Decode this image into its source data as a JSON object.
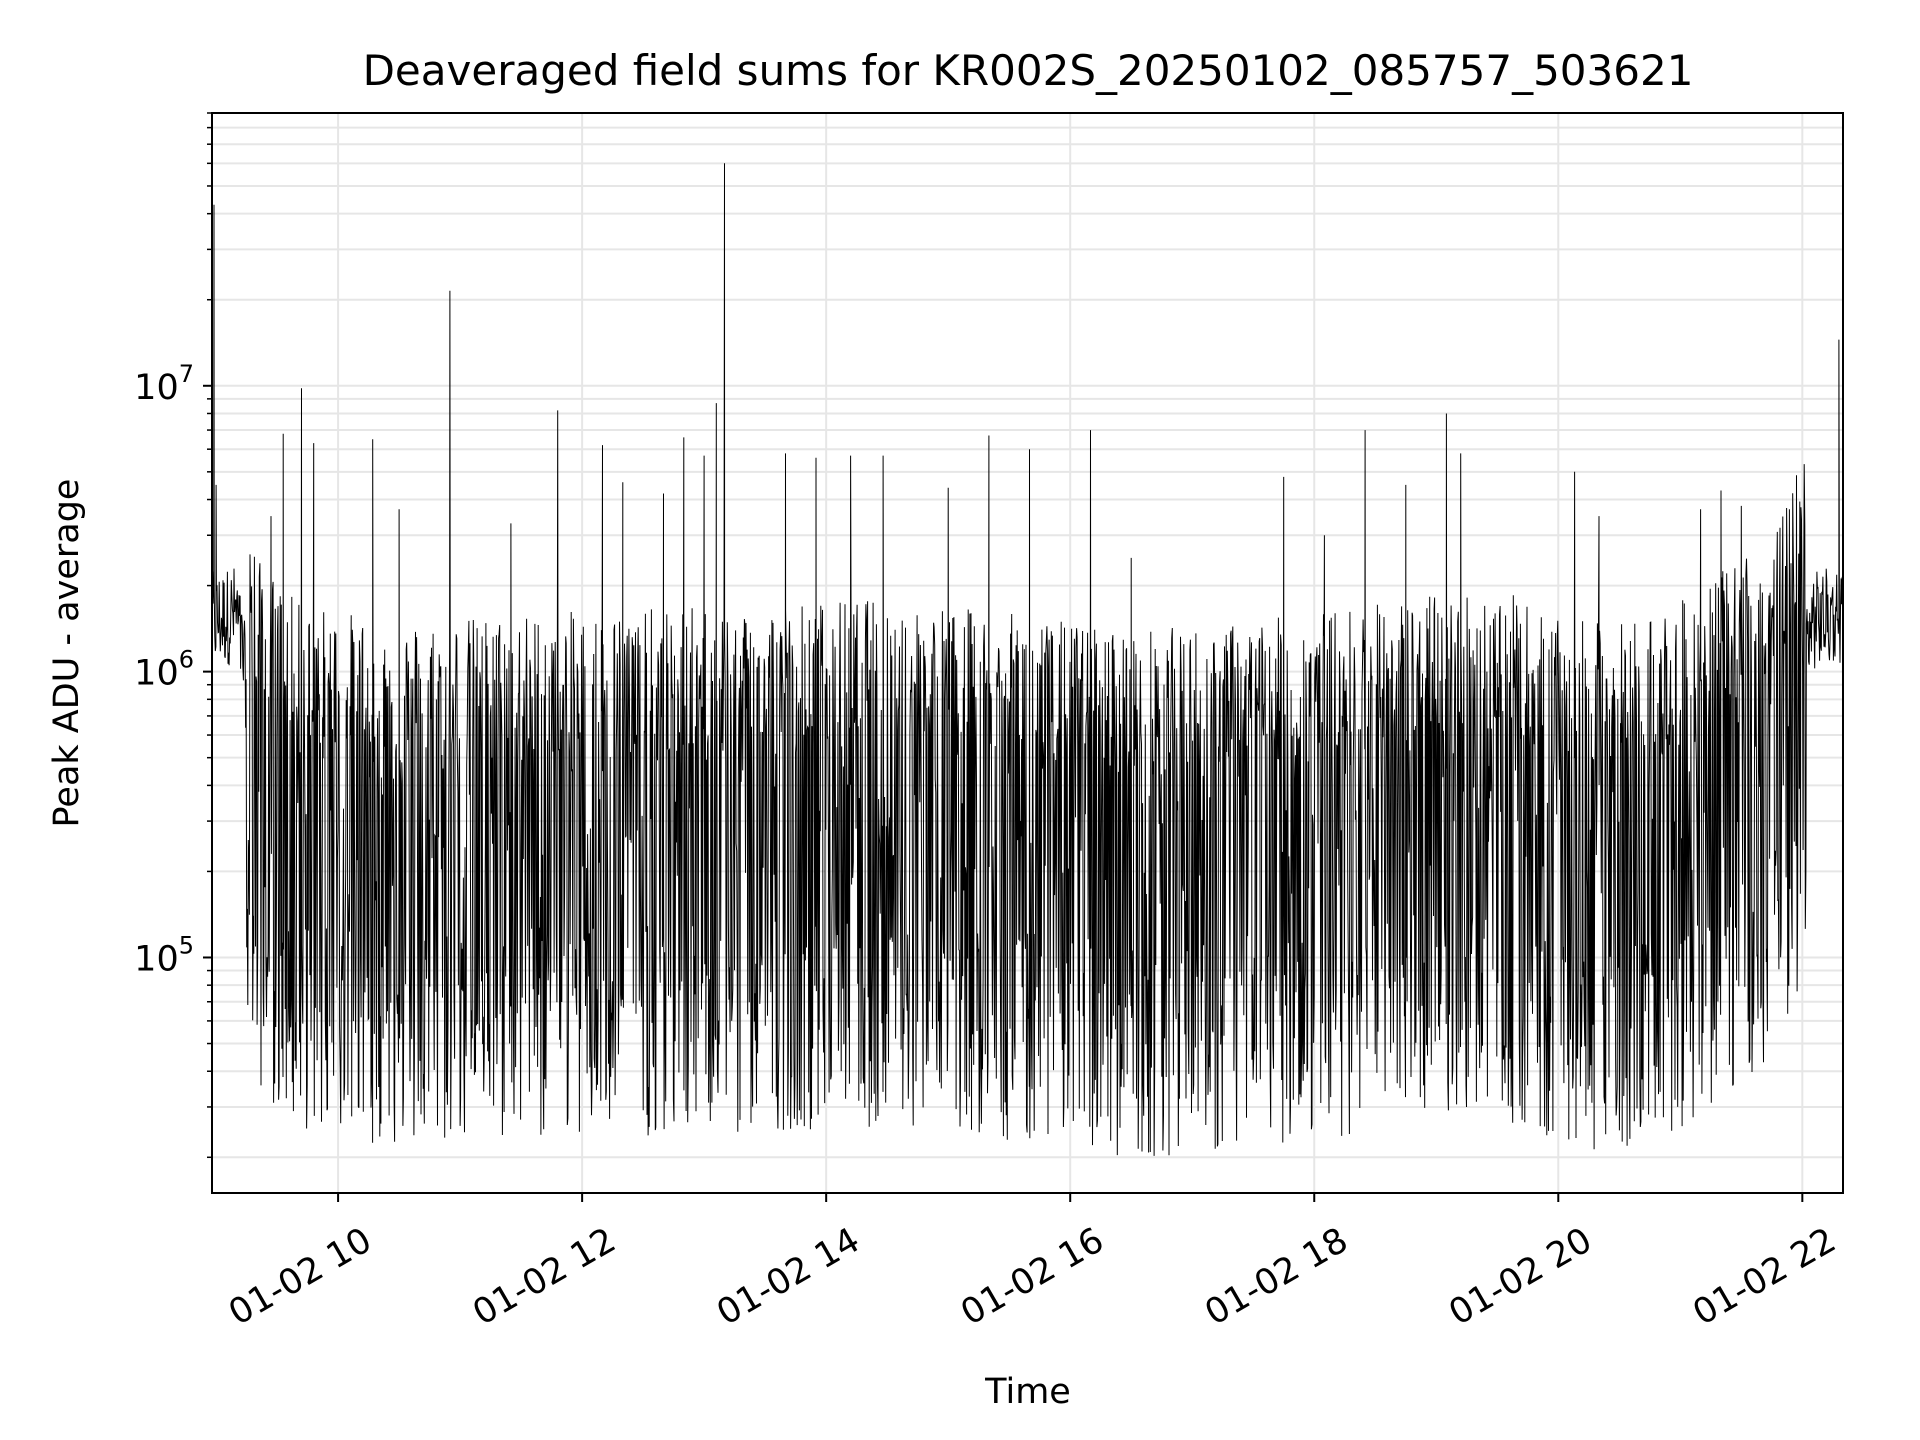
{
  "chart_data": {
    "type": "line",
    "title": "Deaveraged field sums for KR002S_20250102_085757_503621",
    "xlabel": "Time",
    "ylabel": "Peak ADU - average",
    "yscale": "log",
    "grid": true,
    "xlim": [
      "2025-01-02 08:58",
      "2025-01-02 22:20"
    ],
    "ylim": [
      15000,
      90000000
    ],
    "xticks": [
      {
        "value": "2025-01-02 10:00",
        "label": "01-02 10"
      },
      {
        "value": "2025-01-02 12:00",
        "label": "01-02 12"
      },
      {
        "value": "2025-01-02 14:00",
        "label": "01-02 14"
      },
      {
        "value": "2025-01-02 16:00",
        "label": "01-02 16"
      },
      {
        "value": "2025-01-02 18:00",
        "label": "01-02 18"
      },
      {
        "value": "2025-01-02 20:00",
        "label": "01-02 20"
      },
      {
        "value": "2025-01-02 22:00",
        "label": "01-02 22"
      }
    ],
    "yticks": [
      {
        "value": 100000,
        "base": "10",
        "exp": "5"
      },
      {
        "value": 1000000,
        "base": "10",
        "exp": "6"
      },
      {
        "value": 10000000,
        "base": "10",
        "exp": "7"
      }
    ],
    "series": [
      {
        "color": "#000000",
        "baseline": [
          [
            "2025-01-02 08:58",
            1500000
          ],
          [
            "2025-01-02 09:10",
            1600000
          ],
          [
            "2025-01-02 09:20",
            500000
          ],
          [
            "2025-01-02 09:40",
            350000
          ],
          [
            "2025-01-02 10:30",
            300000
          ],
          [
            "2025-01-02 11:30",
            320000
          ],
          [
            "2025-01-02 12:30",
            330000
          ],
          [
            "2025-01-02 13:30",
            350000
          ],
          [
            "2025-01-02 14:30",
            360000
          ],
          [
            "2025-01-02 15:30",
            320000
          ],
          [
            "2025-01-02 16:30",
            280000
          ],
          [
            "2025-01-02 17:30",
            300000
          ],
          [
            "2025-01-02 18:30",
            350000
          ],
          [
            "2025-01-02 19:30",
            400000
          ],
          [
            "2025-01-02 20:00",
            300000
          ],
          [
            "2025-01-02 20:30",
            300000
          ],
          [
            "2025-01-02 21:00",
            350000
          ],
          [
            "2025-01-02 21:30",
            500000
          ],
          [
            "2025-01-02 21:50",
            700000
          ],
          [
            "2025-01-02 22:05",
            1500000
          ],
          [
            "2025-01-02 22:20",
            1600000
          ]
        ],
        "peaks": [
          [
            "2025-01-02 08:59",
            43000000
          ],
          [
            "2025-01-02 09:00",
            4500000
          ],
          [
            "2025-01-02 09:27",
            3500000
          ],
          [
            "2025-01-02 09:33",
            6800000
          ],
          [
            "2025-01-02 09:42",
            9800000
          ],
          [
            "2025-01-02 09:48",
            6300000
          ],
          [
            "2025-01-02 10:17",
            6500000
          ],
          [
            "2025-01-02 10:30",
            3700000
          ],
          [
            "2025-01-02 10:55",
            21500000
          ],
          [
            "2025-01-02 11:25",
            3300000
          ],
          [
            "2025-01-02 11:48",
            8200000
          ],
          [
            "2025-01-02 12:10",
            6200000
          ],
          [
            "2025-01-02 12:20",
            4600000
          ],
          [
            "2025-01-02 12:40",
            4200000
          ],
          [
            "2025-01-02 12:50",
            6600000
          ],
          [
            "2025-01-02 13:00",
            5700000
          ],
          [
            "2025-01-02 13:06",
            8700000
          ],
          [
            "2025-01-02 13:10",
            60000000
          ],
          [
            "2025-01-02 13:40",
            5800000
          ],
          [
            "2025-01-02 13:55",
            5600000
          ],
          [
            "2025-01-02 14:12",
            5700000
          ],
          [
            "2025-01-02 14:28",
            5700000
          ],
          [
            "2025-01-02 15:00",
            4400000
          ],
          [
            "2025-01-02 15:20",
            6700000
          ],
          [
            "2025-01-02 15:40",
            6000000
          ],
          [
            "2025-01-02 16:10",
            7000000
          ],
          [
            "2025-01-02 16:30",
            2500000
          ],
          [
            "2025-01-02 17:45",
            4800000
          ],
          [
            "2025-01-02 18:05",
            3000000
          ],
          [
            "2025-01-02 18:25",
            7000000
          ],
          [
            "2025-01-02 18:45",
            4500000
          ],
          [
            "2025-01-02 19:05",
            8000000
          ],
          [
            "2025-01-02 19:12",
            5800000
          ],
          [
            "2025-01-02 20:08",
            5000000
          ],
          [
            "2025-01-02 20:20",
            3500000
          ],
          [
            "2025-01-02 21:10",
            3700000
          ],
          [
            "2025-01-02 21:20",
            4300000
          ],
          [
            "2025-01-02 21:30",
            3800000
          ],
          [
            "2025-01-02 22:18",
            14500000
          ]
        ]
      }
    ]
  }
}
